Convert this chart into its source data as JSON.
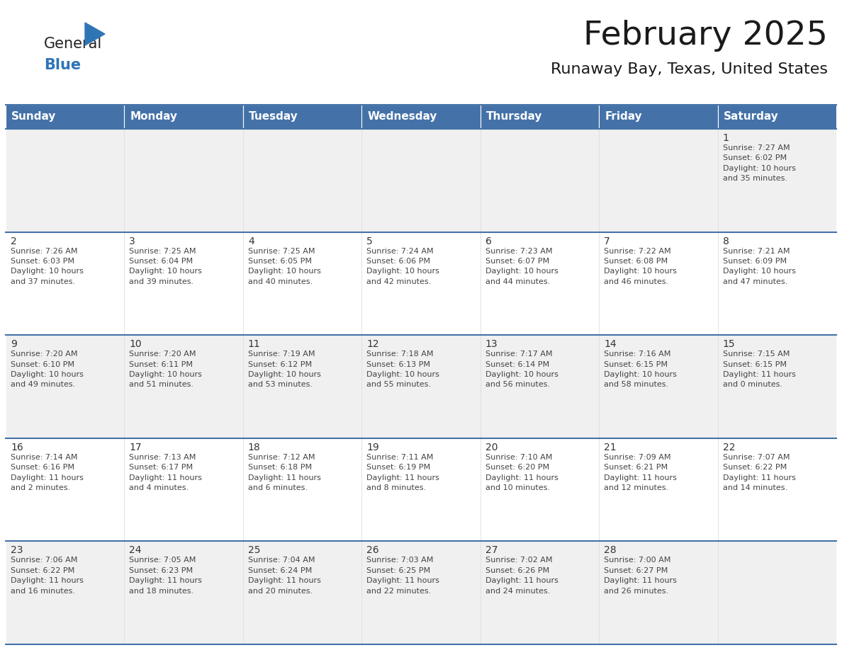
{
  "title": "February 2025",
  "subtitle": "Runaway Bay, Texas, United States",
  "header_bg_color": "#4472A8",
  "header_text_color": "#FFFFFF",
  "header_font_size": 11,
  "day_names": [
    "Sunday",
    "Monday",
    "Tuesday",
    "Wednesday",
    "Thursday",
    "Friday",
    "Saturday"
  ],
  "title_font_size": 34,
  "subtitle_font_size": 16,
  "cell_bg_even": "#FFFFFF",
  "cell_bg_odd": "#F0F0F0",
  "cell_border_color": "#4472A8",
  "day_num_color": "#333333",
  "info_text_color": "#444444",
  "logo_general_color": "#222222",
  "logo_blue_color": "#2E75B6",
  "logo_triangle_color": "#2E75B6",
  "calendar_data": [
    [
      {
        "day": 0,
        "info": ""
      },
      {
        "day": 0,
        "info": ""
      },
      {
        "day": 0,
        "info": ""
      },
      {
        "day": 0,
        "info": ""
      },
      {
        "day": 0,
        "info": ""
      },
      {
        "day": 0,
        "info": ""
      },
      {
        "day": 1,
        "info": "Sunrise: 7:27 AM\nSunset: 6:02 PM\nDaylight: 10 hours\nand 35 minutes."
      }
    ],
    [
      {
        "day": 2,
        "info": "Sunrise: 7:26 AM\nSunset: 6:03 PM\nDaylight: 10 hours\nand 37 minutes."
      },
      {
        "day": 3,
        "info": "Sunrise: 7:25 AM\nSunset: 6:04 PM\nDaylight: 10 hours\nand 39 minutes."
      },
      {
        "day": 4,
        "info": "Sunrise: 7:25 AM\nSunset: 6:05 PM\nDaylight: 10 hours\nand 40 minutes."
      },
      {
        "day": 5,
        "info": "Sunrise: 7:24 AM\nSunset: 6:06 PM\nDaylight: 10 hours\nand 42 minutes."
      },
      {
        "day": 6,
        "info": "Sunrise: 7:23 AM\nSunset: 6:07 PM\nDaylight: 10 hours\nand 44 minutes."
      },
      {
        "day": 7,
        "info": "Sunrise: 7:22 AM\nSunset: 6:08 PM\nDaylight: 10 hours\nand 46 minutes."
      },
      {
        "day": 8,
        "info": "Sunrise: 7:21 AM\nSunset: 6:09 PM\nDaylight: 10 hours\nand 47 minutes."
      }
    ],
    [
      {
        "day": 9,
        "info": "Sunrise: 7:20 AM\nSunset: 6:10 PM\nDaylight: 10 hours\nand 49 minutes."
      },
      {
        "day": 10,
        "info": "Sunrise: 7:20 AM\nSunset: 6:11 PM\nDaylight: 10 hours\nand 51 minutes."
      },
      {
        "day": 11,
        "info": "Sunrise: 7:19 AM\nSunset: 6:12 PM\nDaylight: 10 hours\nand 53 minutes."
      },
      {
        "day": 12,
        "info": "Sunrise: 7:18 AM\nSunset: 6:13 PM\nDaylight: 10 hours\nand 55 minutes."
      },
      {
        "day": 13,
        "info": "Sunrise: 7:17 AM\nSunset: 6:14 PM\nDaylight: 10 hours\nand 56 minutes."
      },
      {
        "day": 14,
        "info": "Sunrise: 7:16 AM\nSunset: 6:15 PM\nDaylight: 10 hours\nand 58 minutes."
      },
      {
        "day": 15,
        "info": "Sunrise: 7:15 AM\nSunset: 6:15 PM\nDaylight: 11 hours\nand 0 minutes."
      }
    ],
    [
      {
        "day": 16,
        "info": "Sunrise: 7:14 AM\nSunset: 6:16 PM\nDaylight: 11 hours\nand 2 minutes."
      },
      {
        "day": 17,
        "info": "Sunrise: 7:13 AM\nSunset: 6:17 PM\nDaylight: 11 hours\nand 4 minutes."
      },
      {
        "day": 18,
        "info": "Sunrise: 7:12 AM\nSunset: 6:18 PM\nDaylight: 11 hours\nand 6 minutes."
      },
      {
        "day": 19,
        "info": "Sunrise: 7:11 AM\nSunset: 6:19 PM\nDaylight: 11 hours\nand 8 minutes."
      },
      {
        "day": 20,
        "info": "Sunrise: 7:10 AM\nSunset: 6:20 PM\nDaylight: 11 hours\nand 10 minutes."
      },
      {
        "day": 21,
        "info": "Sunrise: 7:09 AM\nSunset: 6:21 PM\nDaylight: 11 hours\nand 12 minutes."
      },
      {
        "day": 22,
        "info": "Sunrise: 7:07 AM\nSunset: 6:22 PM\nDaylight: 11 hours\nand 14 minutes."
      }
    ],
    [
      {
        "day": 23,
        "info": "Sunrise: 7:06 AM\nSunset: 6:22 PM\nDaylight: 11 hours\nand 16 minutes."
      },
      {
        "day": 24,
        "info": "Sunrise: 7:05 AM\nSunset: 6:23 PM\nDaylight: 11 hours\nand 18 minutes."
      },
      {
        "day": 25,
        "info": "Sunrise: 7:04 AM\nSunset: 6:24 PM\nDaylight: 11 hours\nand 20 minutes."
      },
      {
        "day": 26,
        "info": "Sunrise: 7:03 AM\nSunset: 6:25 PM\nDaylight: 11 hours\nand 22 minutes."
      },
      {
        "day": 27,
        "info": "Sunrise: 7:02 AM\nSunset: 6:26 PM\nDaylight: 11 hours\nand 24 minutes."
      },
      {
        "day": 28,
        "info": "Sunrise: 7:00 AM\nSunset: 6:27 PM\nDaylight: 11 hours\nand 26 minutes."
      },
      {
        "day": 0,
        "info": ""
      }
    ]
  ]
}
